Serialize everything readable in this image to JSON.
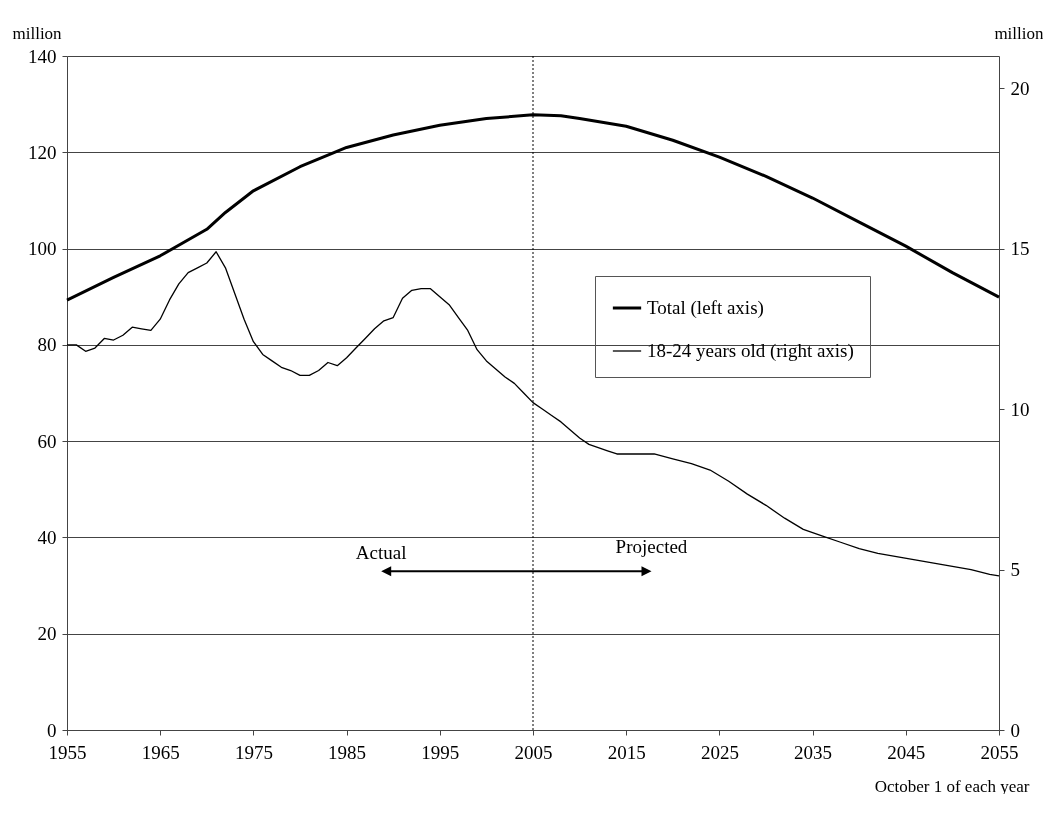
{
  "chart_data": {
    "type": "line",
    "xlabel": "October 1 of each year",
    "ylabel": "million",
    "y2label": "million",
    "xlim": [
      1955,
      2055
    ],
    "xticks": [
      1955,
      1965,
      1975,
      1985,
      1995,
      2005,
      2015,
      2025,
      2035,
      2045,
      2055
    ],
    "ylim": [
      0,
      140
    ],
    "yticks": [
      0,
      20,
      40,
      60,
      80,
      100,
      120,
      140
    ],
    "y2lim": [
      0,
      21
    ],
    "y2ticks": [
      0,
      5,
      10,
      15,
      20
    ],
    "grid": "y",
    "legend": "right",
    "line_style": "solid",
    "ref_lines": [
      {
        "axis": "x",
        "value": 2005,
        "line_style": "dotted"
      }
    ],
    "annotations": [
      "Actual",
      "Projected"
    ],
    "series": [
      {
        "name": "Total (left axis)",
        "color": "#000000",
        "axis": "y",
        "x": [
          1955,
          1960,
          1965,
          1970,
          1972,
          1975,
          1980,
          1985,
          1990,
          1995,
          2000,
          2005,
          2008,
          2010,
          2015,
          2020,
          2025,
          2030,
          2035,
          2040,
          2045,
          2050,
          2055
        ],
        "values": [
          89.3,
          94,
          98.5,
          104,
          107.5,
          112,
          117,
          121,
          123.6,
          125.6,
          127,
          127.8,
          127.6,
          127,
          125.4,
          122.5,
          119,
          115,
          110.5,
          105.5,
          100.5,
          95,
          89.9
        ]
      },
      {
        "name": "18-24 years old (right axis)",
        "color": "#000000",
        "axis": "y2",
        "x": [
          1955,
          1956,
          1957,
          1958,
          1959,
          1960,
          1961,
          1962,
          1963,
          1964,
          1965,
          1966,
          1967,
          1968,
          1969,
          1970,
          1971,
          1972,
          1973,
          1974,
          1975,
          1976,
          1977,
          1978,
          1979,
          1980,
          1981,
          1982,
          1983,
          1984,
          1985,
          1986,
          1987,
          1988,
          1989,
          1990,
          1991,
          1992,
          1993,
          1994,
          1995,
          1996,
          1997,
          1998,
          1999,
          2000,
          2001,
          2002,
          2003,
          2004,
          2005,
          2006,
          2007,
          2008,
          2009,
          2010,
          2011,
          2012,
          2013,
          2014,
          2015,
          2018,
          2020,
          2022,
          2024,
          2026,
          2028,
          2030,
          2032,
          2034,
          2036,
          2038,
          2040,
          2042,
          2044,
          2046,
          2048,
          2050,
          2052,
          2054,
          2055
        ],
        "values": [
          12.0,
          12.0,
          11.8,
          11.9,
          12.2,
          12.15,
          12.3,
          12.55,
          12.5,
          12.45,
          12.8,
          13.4,
          13.9,
          14.25,
          14.4,
          14.55,
          14.9,
          14.4,
          13.6,
          12.8,
          12.1,
          11.7,
          11.5,
          11.3,
          11.2,
          11.05,
          11.05,
          11.2,
          11.45,
          11.35,
          11.6,
          11.9,
          12.2,
          12.5,
          12.75,
          12.85,
          13.45,
          13.7,
          13.75,
          13.75,
          13.5,
          13.25,
          12.85,
          12.45,
          11.85,
          11.5,
          11.25,
          11.0,
          10.8,
          10.5,
          10.2,
          10.0,
          9.8,
          9.6,
          9.35,
          9.1,
          8.9,
          8.8,
          8.7,
          8.6,
          8.6,
          8.6,
          8.45,
          8.3,
          8.1,
          7.75,
          7.35,
          7.0,
          6.6,
          6.25,
          6.05,
          5.85,
          5.65,
          5.5,
          5.4,
          5.3,
          5.2,
          5.1,
          5.0,
          4.85,
          4.8
        ]
      }
    ]
  }
}
